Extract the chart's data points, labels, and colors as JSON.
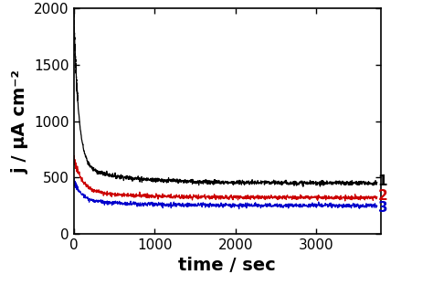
{
  "title": "",
  "xlabel": "time / sec",
  "ylabel": "j / μA cm⁻²",
  "xlim": [
    0,
    3800
  ],
  "ylim": [
    0,
    2000
  ],
  "xticks": [
    0,
    1000,
    2000,
    3000
  ],
  "yticks": [
    0,
    500,
    1000,
    1500,
    2000
  ],
  "curve1_color": "#000000",
  "curve2_color": "#cc0000",
  "curve3_color": "#0000cc",
  "label1": "1",
  "label2": "2",
  "label3": "3",
  "noise_std": 10,
  "background_color": "#ffffff",
  "tick_label_fontsize": 11,
  "axis_label_fontsize": 14,
  "line_width": 0.9,
  "curve1_end": 450,
  "curve2_end": 320,
  "curve3_end": 250,
  "curve1_start": 2000,
  "curve2_start": 680,
  "curve3_start": 480,
  "curve1_plateau": 450,
  "curve2_plateau": 330,
  "curve3_plateau": 255,
  "tau1_fast": 60,
  "tau1_slow": 600,
  "tau2_fast": 100,
  "tau2_slow": 700,
  "tau3_fast": 90,
  "tau3_slow": 650
}
